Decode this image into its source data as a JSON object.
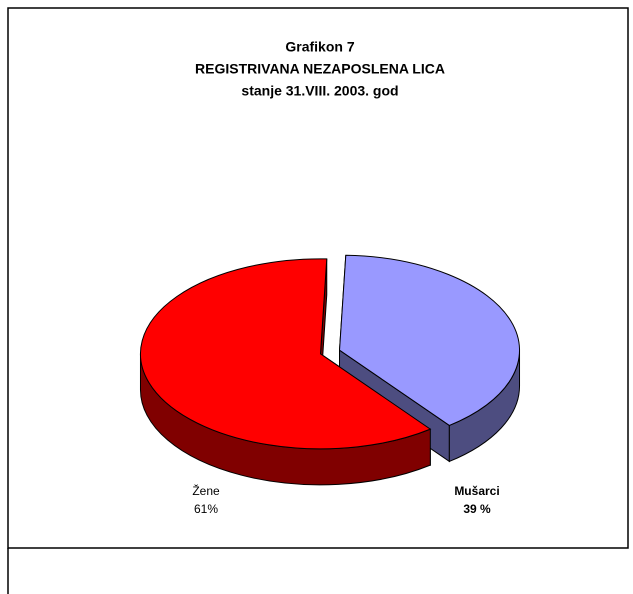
{
  "chart_data": {
    "type": "pie3d",
    "title": [
      "Grafikon 7",
      "REGISTRIVANA NEZAPOSLENA LICA",
      "stanje 31.VIII. 2003. god"
    ],
    "categories": [
      "Žene",
      "Mušarci"
    ],
    "values": [
      61,
      39
    ],
    "value_labels": [
      "61%",
      "39 %"
    ],
    "colors": [
      "#ff0000",
      "#9999ff"
    ],
    "side_colors": [
      "#800000",
      "#4d4d80"
    ]
  }
}
